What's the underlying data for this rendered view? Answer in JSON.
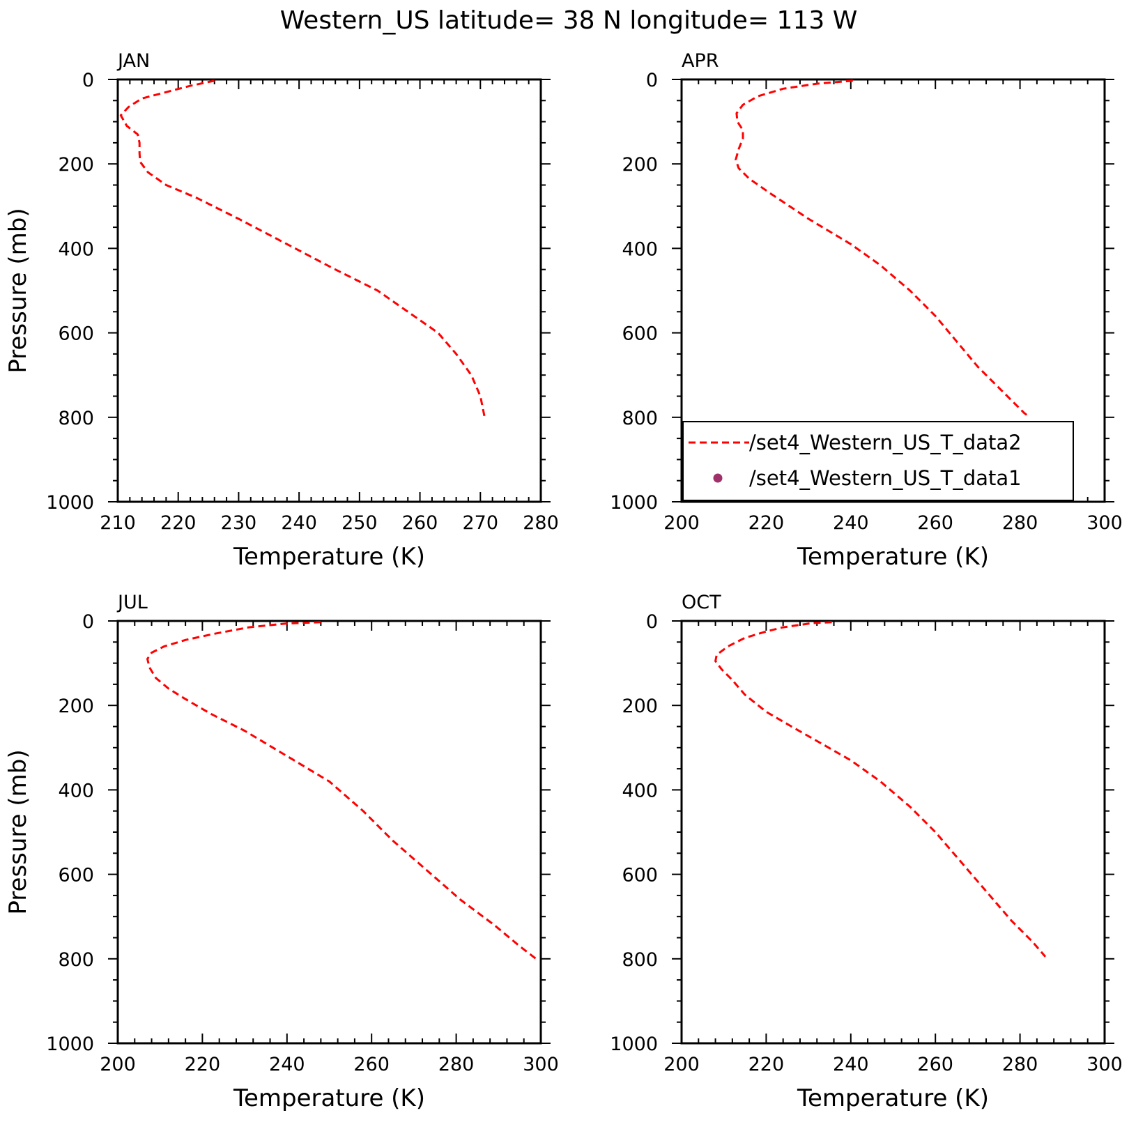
{
  "title": "Western_US  latitude= 38 N longitude= 113 W",
  "colors": {
    "model": "#ff0000",
    "obs": "#a0306a",
    "axis": "#000000"
  },
  "legend": {
    "entries": [
      {
        "label": "/set4_Western_US_T_data2",
        "style": "dashed-line",
        "color": "#ff0000"
      },
      {
        "label": "/set4_Western_US_T_data1",
        "style": "dot",
        "color": "#a0306a"
      }
    ],
    "panel": "APR",
    "placement": "bottom-left"
  },
  "chart_data": [
    {
      "type": "line",
      "panel_label": "JAN",
      "xlabel": "Temperature (K)",
      "ylabel": "Pressure (mb)",
      "xlim": [
        210,
        280
      ],
      "ylim": [
        1000,
        0
      ],
      "xticks": [
        210,
        220,
        230,
        240,
        250,
        260,
        270,
        280
      ],
      "yticks": [
        0,
        200,
        400,
        600,
        800,
        1000
      ],
      "series": [
        {
          "line": "dashed",
          "points": [
            [
              226,
              3
            ],
            [
              222,
              15
            ],
            [
              218,
              30
            ],
            [
              214,
              45
            ],
            [
              211.8,
              65
            ],
            [
              210.5,
              85
            ],
            [
              211.5,
              110
            ],
            [
              213.3,
              130
            ],
            [
              213.6,
              150
            ],
            [
              213.6,
              175
            ],
            [
              213.7,
              195
            ],
            [
              215,
              220
            ],
            [
              218,
              250
            ],
            [
              223,
              280
            ],
            [
              230,
              330
            ],
            [
              238,
              390
            ],
            [
              246,
              450
            ],
            [
              253,
              500
            ],
            [
              258,
              550
            ],
            [
              263,
              600
            ],
            [
              266,
              650
            ],
            [
              268.5,
              700
            ],
            [
              270,
              750
            ],
            [
              270.7,
              800
            ]
          ]
        }
      ]
    },
    {
      "type": "line",
      "panel_label": "APR",
      "xlabel": "Temperature (K)",
      "ylabel": "",
      "xlim": [
        200,
        300
      ],
      "ylim": [
        1000,
        0
      ],
      "xticks": [
        200,
        220,
        240,
        260,
        280,
        300
      ],
      "yticks": [
        0,
        200,
        400,
        600,
        800,
        1000
      ],
      "series": [
        {
          "line": "dashed",
          "points": [
            [
              240.5,
              3
            ],
            [
              232,
              10
            ],
            [
              224,
              22
            ],
            [
              218,
              40
            ],
            [
              214.5,
              60
            ],
            [
              213,
              80
            ],
            [
              213.2,
              100
            ],
            [
              214.5,
              120
            ],
            [
              214.5,
              140
            ],
            [
              213.5,
              165
            ],
            [
              212.8,
              190
            ],
            [
              213.5,
              210
            ],
            [
              216,
              235
            ],
            [
              221,
              270
            ],
            [
              230,
              330
            ],
            [
              240,
              390
            ],
            [
              247,
              440
            ],
            [
              254,
              500
            ],
            [
              260,
              560
            ],
            [
              265,
              620
            ],
            [
              270,
              680
            ],
            [
              276,
              740
            ],
            [
              281,
              790
            ],
            [
              282.3,
              800
            ]
          ]
        }
      ]
    },
    {
      "type": "line",
      "panel_label": "JUL",
      "xlabel": "Temperature (K)",
      "ylabel": "Pressure (mb)",
      "xlim": [
        200,
        300
      ],
      "ylim": [
        1000,
        0
      ],
      "xticks": [
        200,
        220,
        240,
        260,
        280,
        300
      ],
      "yticks": [
        0,
        200,
        400,
        600,
        800,
        1000
      ],
      "series": [
        {
          "line": "dashed",
          "points": [
            [
              248,
              3
            ],
            [
              240,
              6
            ],
            [
              231,
              15
            ],
            [
              223,
              30
            ],
            [
              216,
              45
            ],
            [
              211,
              60
            ],
            [
              208,
              75
            ],
            [
              207,
              90
            ],
            [
              207.5,
              110
            ],
            [
              209,
              135
            ],
            [
              212,
              160
            ],
            [
              216,
              185
            ],
            [
              222,
              220
            ],
            [
              230,
              260
            ],
            [
              240,
              320
            ],
            [
              250,
              380
            ],
            [
              258,
              450
            ],
            [
              265,
              520
            ],
            [
              273,
              590
            ],
            [
              281,
              660
            ],
            [
              289,
              720
            ],
            [
              295,
              770
            ],
            [
              299.5,
              805
            ]
          ]
        }
      ]
    },
    {
      "type": "line",
      "panel_label": "OCT",
      "xlabel": "Temperature (K)",
      "ylabel": "",
      "xlim": [
        200,
        300
      ],
      "ylim": [
        1000,
        0
      ],
      "xticks": [
        200,
        220,
        240,
        260,
        280,
        300
      ],
      "yticks": [
        0,
        200,
        400,
        600,
        800,
        1000
      ],
      "series": [
        {
          "line": "dashed",
          "points": [
            [
              235.5,
              3
            ],
            [
              231,
              5
            ],
            [
              224,
              15
            ],
            [
              220,
              25
            ],
            [
              215,
              40
            ],
            [
              211,
              60
            ],
            [
              208.3,
              80
            ],
            [
              208,
              95
            ],
            [
              209.5,
              115
            ],
            [
              212,
              140
            ],
            [
              215,
              175
            ],
            [
              220,
              215
            ],
            [
              226,
              250
            ],
            [
              233,
              290
            ],
            [
              240,
              330
            ],
            [
              247,
              380
            ],
            [
              254,
              440
            ],
            [
              260,
              500
            ],
            [
              266,
              570
            ],
            [
              272,
              640
            ],
            [
              278,
              710
            ],
            [
              283,
              760
            ],
            [
              286,
              795
            ]
          ]
        }
      ]
    }
  ]
}
